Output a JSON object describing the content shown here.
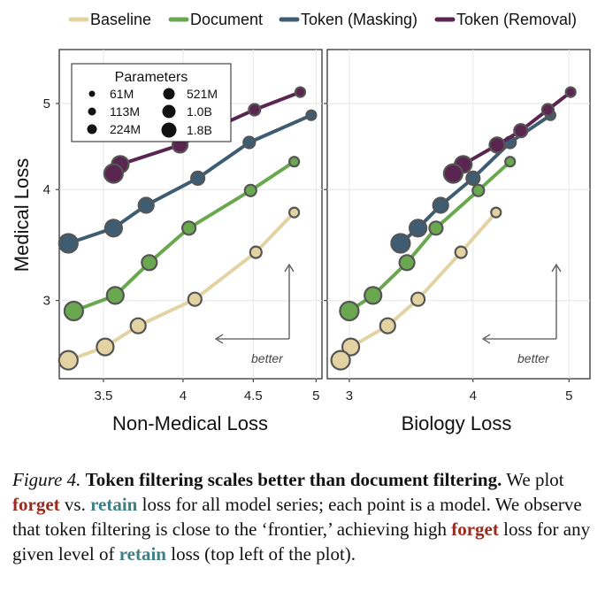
{
  "legend": [
    {
      "name": "Baseline",
      "color": "#e3d3a3"
    },
    {
      "name": "Document",
      "color": "#6aa84f"
    },
    {
      "name": "Token (Masking)",
      "color": "#3f5d72"
    },
    {
      "name": "Token (Removal)",
      "color": "#5a2550"
    }
  ],
  "parameters_legend": {
    "title": "Parameters",
    "items": [
      "61M",
      "113M",
      "224M",
      "521M",
      "1.0B",
      "1.8B"
    ]
  },
  "better_label": "better",
  "chart_data": [
    {
      "type": "line",
      "panel": "left",
      "xlabel": "Non-Medical Loss",
      "ylabel": "Medical Loss",
      "xscale": "log",
      "yscale": "log",
      "xlim": [
        3.25,
        5.05
      ],
      "ylim": [
        2.45,
        5.75
      ],
      "xticks": [
        "3.5",
        "4",
        "4.5",
        "5"
      ],
      "xtick_values": [
        3.5,
        4,
        4.5,
        5
      ],
      "yticks": [
        "3",
        "4",
        "5"
      ],
      "ytick_values": [
        3,
        4,
        5
      ],
      "sizes": [
        "61M",
        "113M",
        "224M",
        "521M",
        "1.0B",
        "1.8B"
      ],
      "series": [
        {
          "name": "Baseline",
          "points": [
            [
              4.82,
              3.77
            ],
            [
              4.52,
              3.4
            ],
            [
              4.08,
              3.01
            ],
            [
              3.71,
              2.81
            ],
            [
              3.51,
              2.66
            ],
            [
              3.3,
              2.57
            ]
          ]
        },
        {
          "name": "Document",
          "points": [
            [
              4.82,
              4.3
            ],
            [
              4.48,
              3.99
            ],
            [
              4.04,
              3.62
            ],
            [
              3.78,
              3.31
            ],
            [
              3.57,
              3.04
            ],
            [
              3.33,
              2.92
            ]
          ]
        },
        {
          "name": "Token (Masking)",
          "points": [
            [
              4.96,
              4.85
            ],
            [
              4.47,
              4.52
            ],
            [
              4.1,
              4.12
            ],
            [
              3.76,
              3.84
            ],
            [
              3.56,
              3.62
            ],
            [
              3.3,
              3.48
            ]
          ]
        },
        {
          "name": "Token (Removal)",
          "points": [
            [
              4.87,
              5.15
            ],
            [
              4.51,
              4.92
            ],
            [
              4.17,
              4.66
            ],
            [
              3.98,
              4.49
            ],
            [
              3.6,
              4.27
            ],
            [
              3.56,
              4.17
            ]
          ]
        }
      ]
    },
    {
      "type": "line",
      "panel": "right",
      "xlabel": "Biology Loss",
      "ylabel": "Medical Loss",
      "xscale": "log",
      "yscale": "log",
      "xlim": [
        2.85,
        5.25
      ],
      "ylim": [
        2.45,
        5.75
      ],
      "xticks": [
        "3",
        "4",
        "5"
      ],
      "xtick_values": [
        3,
        4,
        5
      ],
      "yticks": [
        "3",
        "4",
        "5"
      ],
      "ytick_values": [
        3,
        4,
        5
      ],
      "sizes": [
        "61M",
        "113M",
        "224M",
        "521M",
        "1.0B",
        "1.8B"
      ],
      "series": [
        {
          "name": "Baseline",
          "points": [
            [
              4.22,
              3.77
            ],
            [
              3.89,
              3.4
            ],
            [
              3.52,
              3.01
            ],
            [
              3.28,
              2.81
            ],
            [
              3.01,
              2.66
            ],
            [
              2.94,
              2.57
            ]
          ]
        },
        {
          "name": "Document",
          "points": [
            [
              4.36,
              4.3
            ],
            [
              4.05,
              3.99
            ],
            [
              3.67,
              3.62
            ],
            [
              3.43,
              3.31
            ],
            [
              3.17,
              3.04
            ],
            [
              3.0,
              2.92
            ]
          ]
        },
        {
          "name": "Token (Masking)",
          "points": [
            [
              4.79,
              4.85
            ],
            [
              4.36,
              4.52
            ],
            [
              4.0,
              4.12
            ],
            [
              3.71,
              3.84
            ],
            [
              3.52,
              3.62
            ],
            [
              3.38,
              3.48
            ]
          ]
        },
        {
          "name": "Token (Removal)",
          "points": [
            [
              5.02,
              5.15
            ],
            [
              4.76,
              4.92
            ],
            [
              4.47,
              4.66
            ],
            [
              4.23,
              4.49
            ],
            [
              3.91,
              4.27
            ],
            [
              3.82,
              4.17
            ]
          ]
        }
      ]
    }
  ],
  "caption": {
    "lead": "Figure 4.",
    "headline": "Token filtering scales better than document filtering.",
    "t1": "We plot",
    "forget1": "forget",
    "t2": "vs.",
    "retain1": "retain",
    "t3": "loss for all model series; each point is a model. We observe that token filtering is close to the ‘frontier,’ achieving high",
    "forget2": "forget",
    "t4": "loss for any given level of",
    "retain2": "retain",
    "t5": "loss (top left of the plot)."
  }
}
